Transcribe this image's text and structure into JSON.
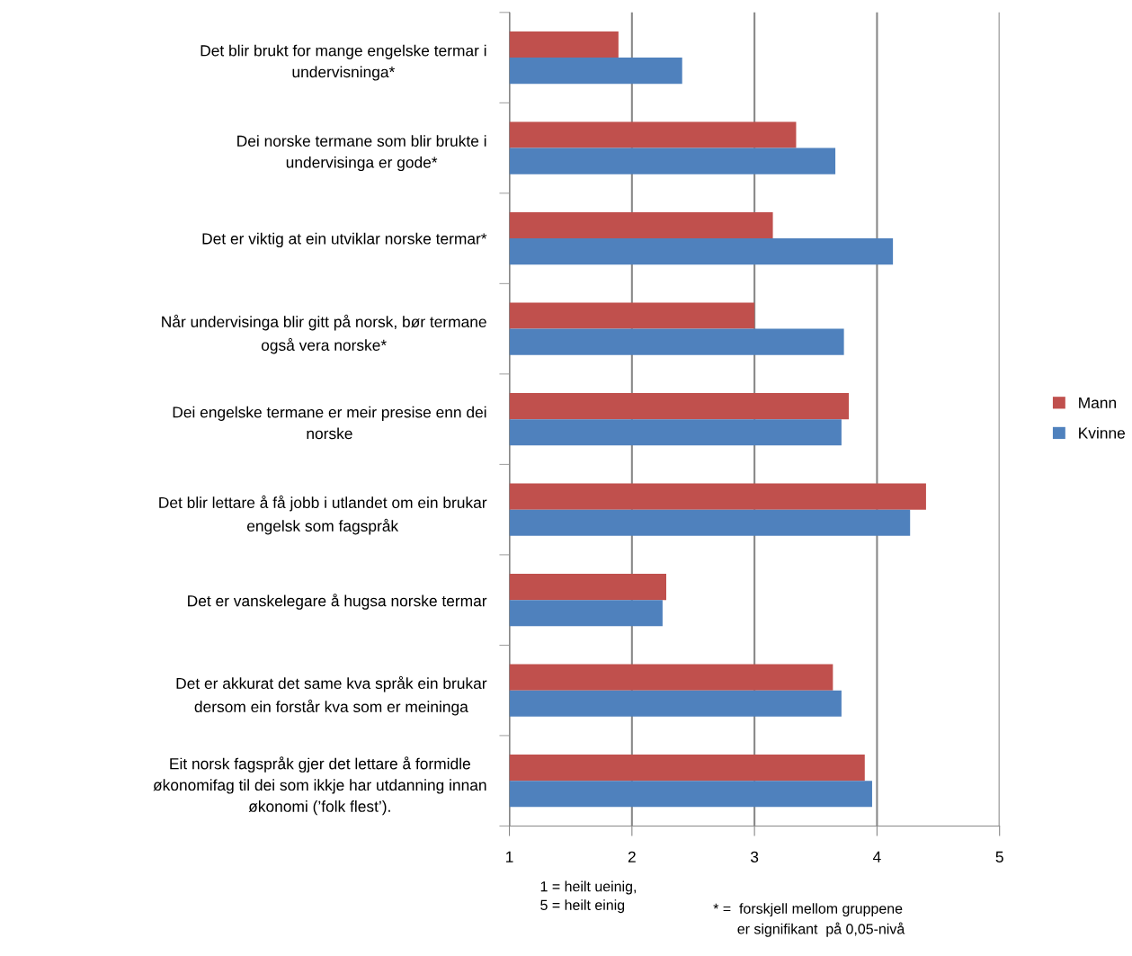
{
  "chart_data": {
    "type": "bar",
    "orientation": "horizontal",
    "categories": [
      "Det blir brukt for mange engelske termar i\nundervisninga*",
      "Dei norske termane som blir brukte i\nundervisinga er gode*",
      "Det er viktig at ein utviklar norske termar*",
      "Når undervisinga blir gitt på norsk, bør termane\nogså vera norske*",
      "Dei engelske termane er meir presise enn dei\nnorske",
      "Det blir lettare å få jobb i utlandet om ein brukar\nengelsk som fagspråk",
      "Det er vanskelegare å hugsa norske termar",
      "Det er akkurat det same kva språk ein brukar\ndersom ein forstår kva som er meininga",
      "Eit norsk fagspråk gjer det lettare å formidle\nøkonomifag til dei som ikkje har utdanning innan\nøkonomi (’folk flest’)."
    ],
    "series": [
      {
        "name": "Mann",
        "color": "#c0504d",
        "values": [
          1.89,
          3.34,
          3.15,
          3.0,
          3.77,
          4.4,
          2.28,
          3.64,
          3.9
        ]
      },
      {
        "name": "Kvinne",
        "color": "#4f81bd",
        "values": [
          2.41,
          3.66,
          4.13,
          3.73,
          3.71,
          4.27,
          2.25,
          3.71,
          3.96
        ]
      }
    ],
    "xlim": [
      1,
      5
    ],
    "xticks": [
      1,
      2,
      3,
      4,
      5
    ],
    "grid": "x",
    "legend": "right",
    "annotations": [
      "1 = heilt ueinig,\n5 = heilt einig",
      "* =  forskjell mellom gruppene\n      er signifikant  på 0,05-nivå"
    ]
  }
}
